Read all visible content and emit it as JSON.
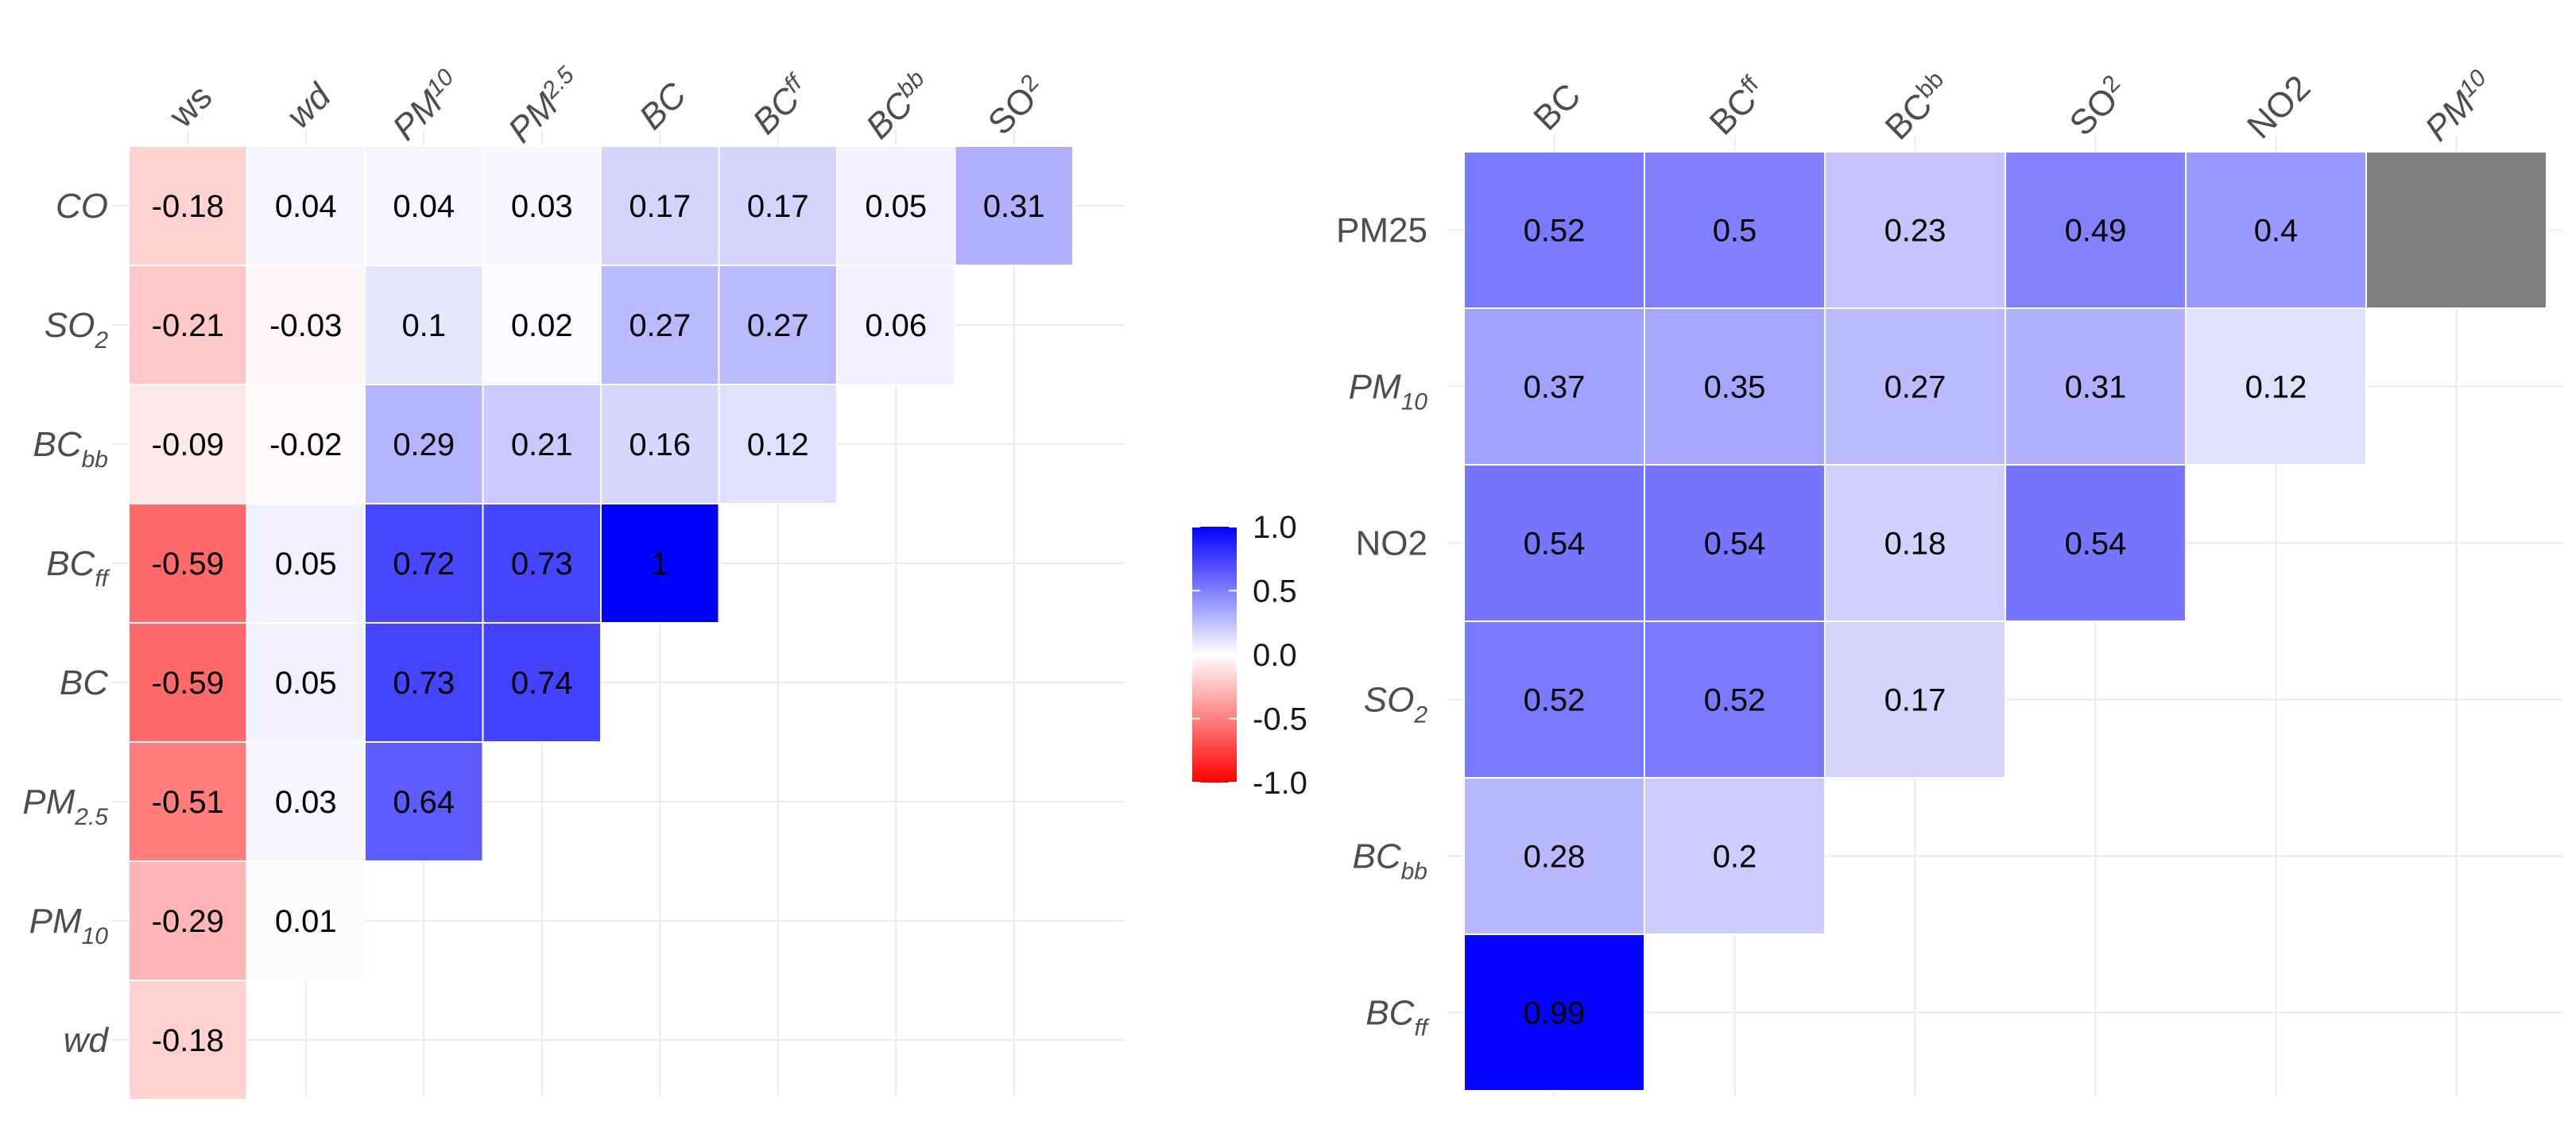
{
  "colors": {
    "positive": "#0000ff",
    "negative": "#ff0000",
    "midpoint": "#ffffff",
    "missing": "#808080",
    "gridline": "#ebebeb",
    "axis_text": "#4d4d4d"
  },
  "chart_data": [
    {
      "type": "heatmap",
      "title": "",
      "columns": [
        {
          "base": "ws",
          "sub": "",
          "italic": false
        },
        {
          "base": "wd",
          "sub": "",
          "italic": true
        },
        {
          "base": "PM",
          "sub": "10",
          "italic": true
        },
        {
          "base": "PM",
          "sub": "2.5",
          "italic": true
        },
        {
          "base": "BC",
          "sub": "",
          "italic": true
        },
        {
          "base": "BC",
          "sub": "ff",
          "italic": true
        },
        {
          "base": "BC",
          "sub": "bb",
          "italic": true
        },
        {
          "base": "SO",
          "sub": "2",
          "italic": false
        }
      ],
      "rows": [
        {
          "base": "CO",
          "sub": "",
          "italic": true
        },
        {
          "base": "SO",
          "sub": "2",
          "italic": true
        },
        {
          "base": "BC",
          "sub": "bb",
          "italic": true
        },
        {
          "base": "BC",
          "sub": "ff",
          "italic": true
        },
        {
          "base": "BC",
          "sub": "",
          "italic": true
        },
        {
          "base": "PM",
          "sub": "2.5",
          "italic": true
        },
        {
          "base": "PM",
          "sub": "10",
          "italic": true
        },
        {
          "base": "wd",
          "sub": "",
          "italic": true
        }
      ],
      "values": [
        [
          -0.18,
          0.04,
          0.04,
          0.03,
          0.17,
          0.17,
          0.05,
          0.31
        ],
        [
          -0.21,
          -0.03,
          0.1,
          0.02,
          0.27,
          0.27,
          0.06,
          null
        ],
        [
          -0.09,
          -0.02,
          0.29,
          0.21,
          0.16,
          0.12,
          null,
          null
        ],
        [
          -0.59,
          0.05,
          0.72,
          0.73,
          1,
          null,
          null,
          null
        ],
        [
          -0.59,
          0.05,
          0.73,
          0.74,
          null,
          null,
          null,
          null
        ],
        [
          -0.51,
          0.03,
          0.64,
          null,
          null,
          null,
          null,
          null
        ],
        [
          -0.29,
          0.01,
          null,
          null,
          null,
          null,
          null,
          null
        ],
        [
          -0.18,
          null,
          null,
          null,
          null,
          null,
          null,
          null
        ]
      ],
      "missing_cells": []
    },
    {
      "type": "heatmap",
      "title": "",
      "columns": [
        {
          "base": "BC",
          "sub": "",
          "italic": false
        },
        {
          "base": "BC",
          "sub": "ff",
          "italic": false
        },
        {
          "base": "BC",
          "sub": "bb",
          "italic": false
        },
        {
          "base": "SO",
          "sub": "2",
          "italic": false
        },
        {
          "base": "NO2",
          "sub": "",
          "italic": false
        },
        {
          "base": "PM",
          "sub": "10",
          "italic": true
        }
      ],
      "rows": [
        {
          "base": "PM25",
          "sub": "",
          "italic": false
        },
        {
          "base": "PM",
          "sub": "10",
          "italic": true
        },
        {
          "base": "NO2",
          "sub": "",
          "italic": false
        },
        {
          "base": "SO",
          "sub": "2",
          "italic": true
        },
        {
          "base": "BC",
          "sub": "bb",
          "italic": true
        },
        {
          "base": "BC",
          "sub": "ff",
          "italic": true
        }
      ],
      "values": [
        [
          0.52,
          0.5,
          0.23,
          0.49,
          0.4,
          null
        ],
        [
          0.37,
          0.35,
          0.27,
          0.31,
          0.12,
          null
        ],
        [
          0.54,
          0.54,
          0.18,
          0.54,
          null,
          null
        ],
        [
          0.52,
          0.52,
          0.17,
          null,
          null,
          null
        ],
        [
          0.28,
          0.2,
          null,
          null,
          null,
          null
        ],
        [
          0.99,
          null,
          null,
          null,
          null,
          null
        ]
      ],
      "missing_cells": [
        [
          0,
          5
        ]
      ]
    }
  ],
  "legend": {
    "ticks": [
      {
        "value": 1.0,
        "label": "1.0"
      },
      {
        "value": 0.5,
        "label": "0.5"
      },
      {
        "value": 0.0,
        "label": "0.0"
      },
      {
        "value": -0.5,
        "label": "-0.5"
      },
      {
        "value": -1.0,
        "label": "-1.0"
      }
    ],
    "range": [
      -1,
      1
    ]
  }
}
